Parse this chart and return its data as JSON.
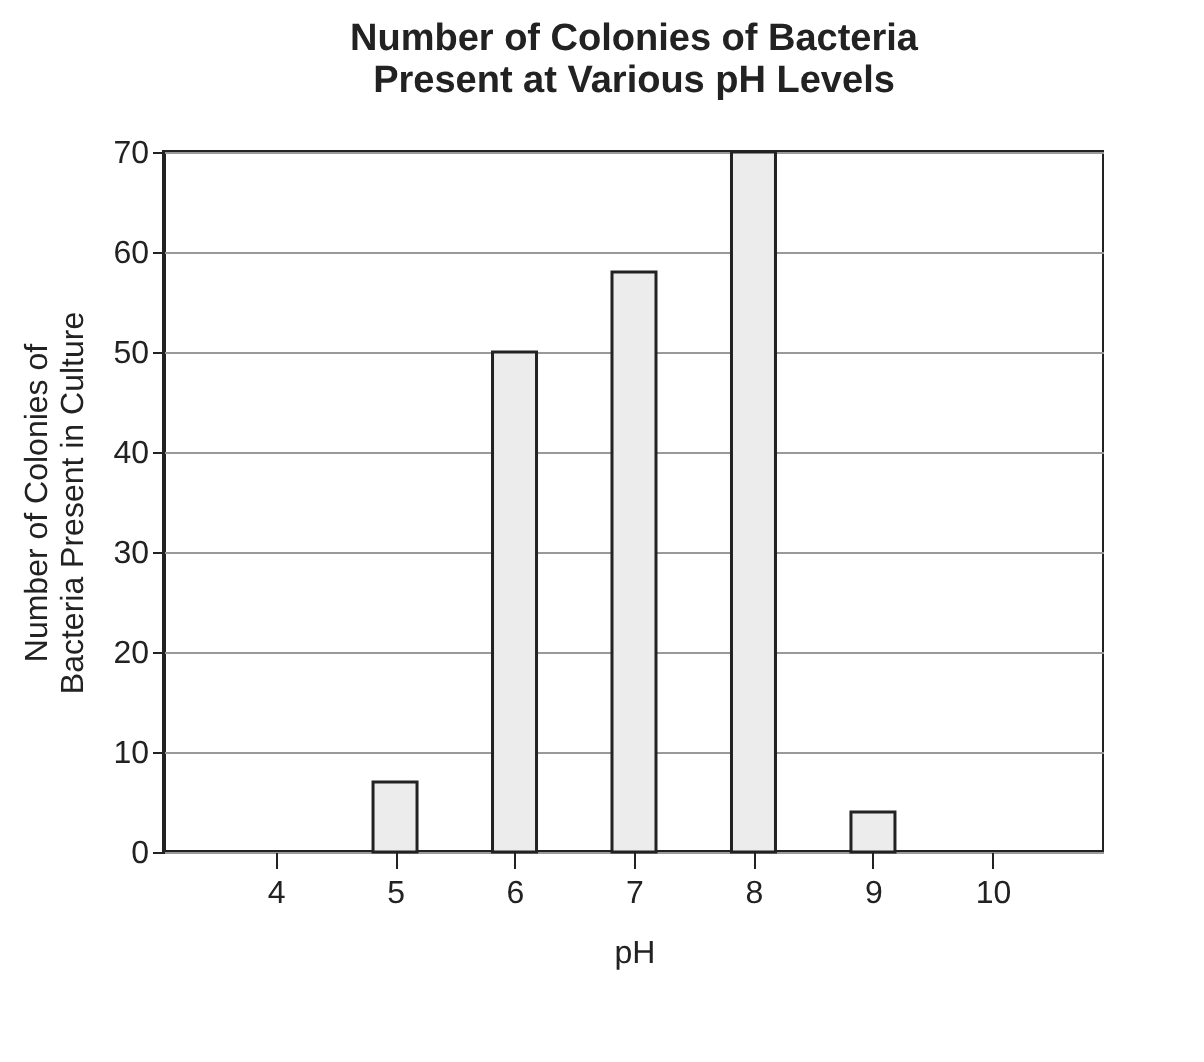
{
  "chart_data": {
    "type": "bar",
    "title": "Number of Colonies of Bacteria\nPresent at Various pH Levels",
    "xlabel": "pH",
    "ylabel": "Number of Colonies of\nBacteria Present in Culture",
    "categories": [
      "4",
      "5",
      "6",
      "7",
      "8",
      "9",
      "10"
    ],
    "values": [
      0,
      7,
      50,
      58,
      70,
      4,
      0
    ],
    "color": "#ececec",
    "ylim": [
      0,
      70
    ],
    "yticks": [
      0,
      10,
      20,
      30,
      40,
      50,
      60,
      70
    ],
    "grid": "y"
  }
}
